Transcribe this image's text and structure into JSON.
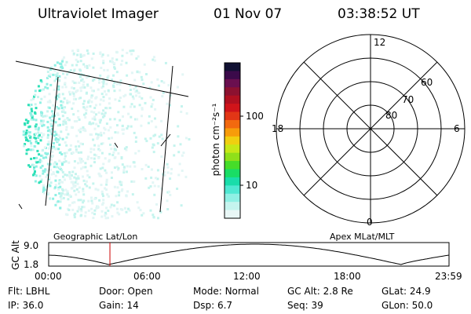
{
  "header": {
    "instrument": "Ultraviolet Imager",
    "date": "01 Nov 07",
    "time": "03:38:52 UT"
  },
  "colorbar": {
    "unit_label": "photon cm⁻²s⁻¹",
    "ticks": [
      "100",
      "10"
    ],
    "colors": [
      "#111133",
      "#3b0a4a",
      "#6a0f4f",
      "#8c1130",
      "#b01020",
      "#d0141a",
      "#e23616",
      "#f2690f",
      "#f79c0a",
      "#f0cf10",
      "#c7e817",
      "#8fe01a",
      "#46dd29",
      "#19dd65",
      "#19ddaa",
      "#4fe8d2",
      "#8ff0e4",
      "#c5f4ee",
      "#e9f7f6"
    ]
  },
  "polar_grid": {
    "mlt_labels": {
      "top": "12",
      "left": "18",
      "right": "6",
      "bottom": "0"
    },
    "lat_labels": [
      "60",
      "70",
      "80"
    ]
  },
  "timeline": {
    "axis_label": "GC Alt",
    "y_ticks": [
      "9.0",
      "1.8"
    ],
    "left_label": "Geographic Lat/Lon",
    "right_label": "Apex MLat/MLT",
    "x_ticks": [
      "00:00",
      "06:00",
      "12:00",
      "18:00",
      "23:59"
    ],
    "current_time_fraction": 0.153,
    "marker_color": "#cc0000"
  },
  "info": {
    "row1": [
      {
        "key": "Flt:",
        "value": "LBHL"
      },
      {
        "key": "Door:",
        "value": "Open"
      },
      {
        "key": "Mode:",
        "value": "Normal"
      },
      {
        "key": "GC Alt:",
        "value": "2.8 Re"
      },
      {
        "key": "GLat:",
        "value": "24.9"
      }
    ],
    "row2": [
      {
        "key": "IP:",
        "value": "36.0"
      },
      {
        "key": "Gain:",
        "value": "14"
      },
      {
        "key": "Dsp:",
        "value": "6.7"
      },
      {
        "key": "Seq:",
        "value": "39"
      },
      {
        "key": "GLon:",
        "value": "50.0"
      }
    ]
  }
}
